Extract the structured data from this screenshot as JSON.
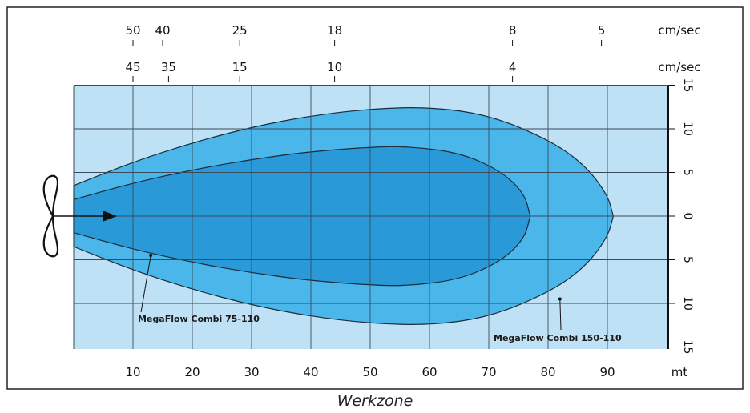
{
  "caption": "Werkzone",
  "chart_data": {
    "type": "area",
    "x_unit": "mt",
    "top_unit_row1": "cm/sec",
    "top_unit_row2": "cm/sec",
    "xlim": [
      0,
      100
    ],
    "ylim": [
      -15,
      15
    ],
    "x_ticks": [
      10,
      20,
      30,
      40,
      50,
      60,
      70,
      80,
      90
    ],
    "y_ticks": [
      15,
      10,
      5,
      0,
      5,
      10,
      15
    ],
    "y_tick_values": [
      15,
      10,
      5,
      0,
      -5,
      -10,
      -15
    ],
    "top_scale_row1": [
      {
        "x": 10,
        "label": "50"
      },
      {
        "x": 15,
        "label": "40"
      },
      {
        "x": 28,
        "label": "25"
      },
      {
        "x": 44,
        "label": "18"
      },
      {
        "x": 74,
        "label": "8"
      },
      {
        "x": 89,
        "label": "5"
      }
    ],
    "top_scale_row2": [
      {
        "x": 10,
        "label": "45"
      },
      {
        "x": 16,
        "label": "35"
      },
      {
        "x": 28,
        "label": "15"
      },
      {
        "x": 44,
        "label": "10"
      },
      {
        "x": 74,
        "label": "4"
      }
    ],
    "grid": true,
    "series": [
      {
        "name": "MegaFlow Combi 150-110",
        "color": "#4ab6ea",
        "x": [
          0,
          10,
          20,
          30,
          40,
          50,
          60,
          70,
          80,
          86,
          90,
          91
        ],
        "y": [
          3.5,
          6.2,
          8.4,
          10.2,
          11.5,
          12.3,
          12.5,
          11.6,
          8.8,
          6.0,
          2.5,
          0
        ]
      },
      {
        "name": "MegaFlow Combi 75-110",
        "color": "#2a99d8",
        "x": [
          0,
          10,
          20,
          30,
          40,
          50,
          56,
          65,
          72,
          76,
          77
        ],
        "y": [
          1.9,
          3.8,
          5.3,
          6.5,
          7.4,
          7.9,
          8.0,
          7.3,
          5.2,
          2.6,
          0
        ]
      }
    ],
    "annotations": [
      {
        "text": "MegaFlow Combi 75-110",
        "x": 13,
        "y": -4.5
      },
      {
        "text": "MegaFlow Combi 150-110",
        "x": 82,
        "y": -9.5
      }
    ],
    "colors": {
      "background": "#bfe1f6",
      "outer": "#4ab6ea",
      "inner": "#2a99d8",
      "grid": "#3a4a5a"
    }
  }
}
